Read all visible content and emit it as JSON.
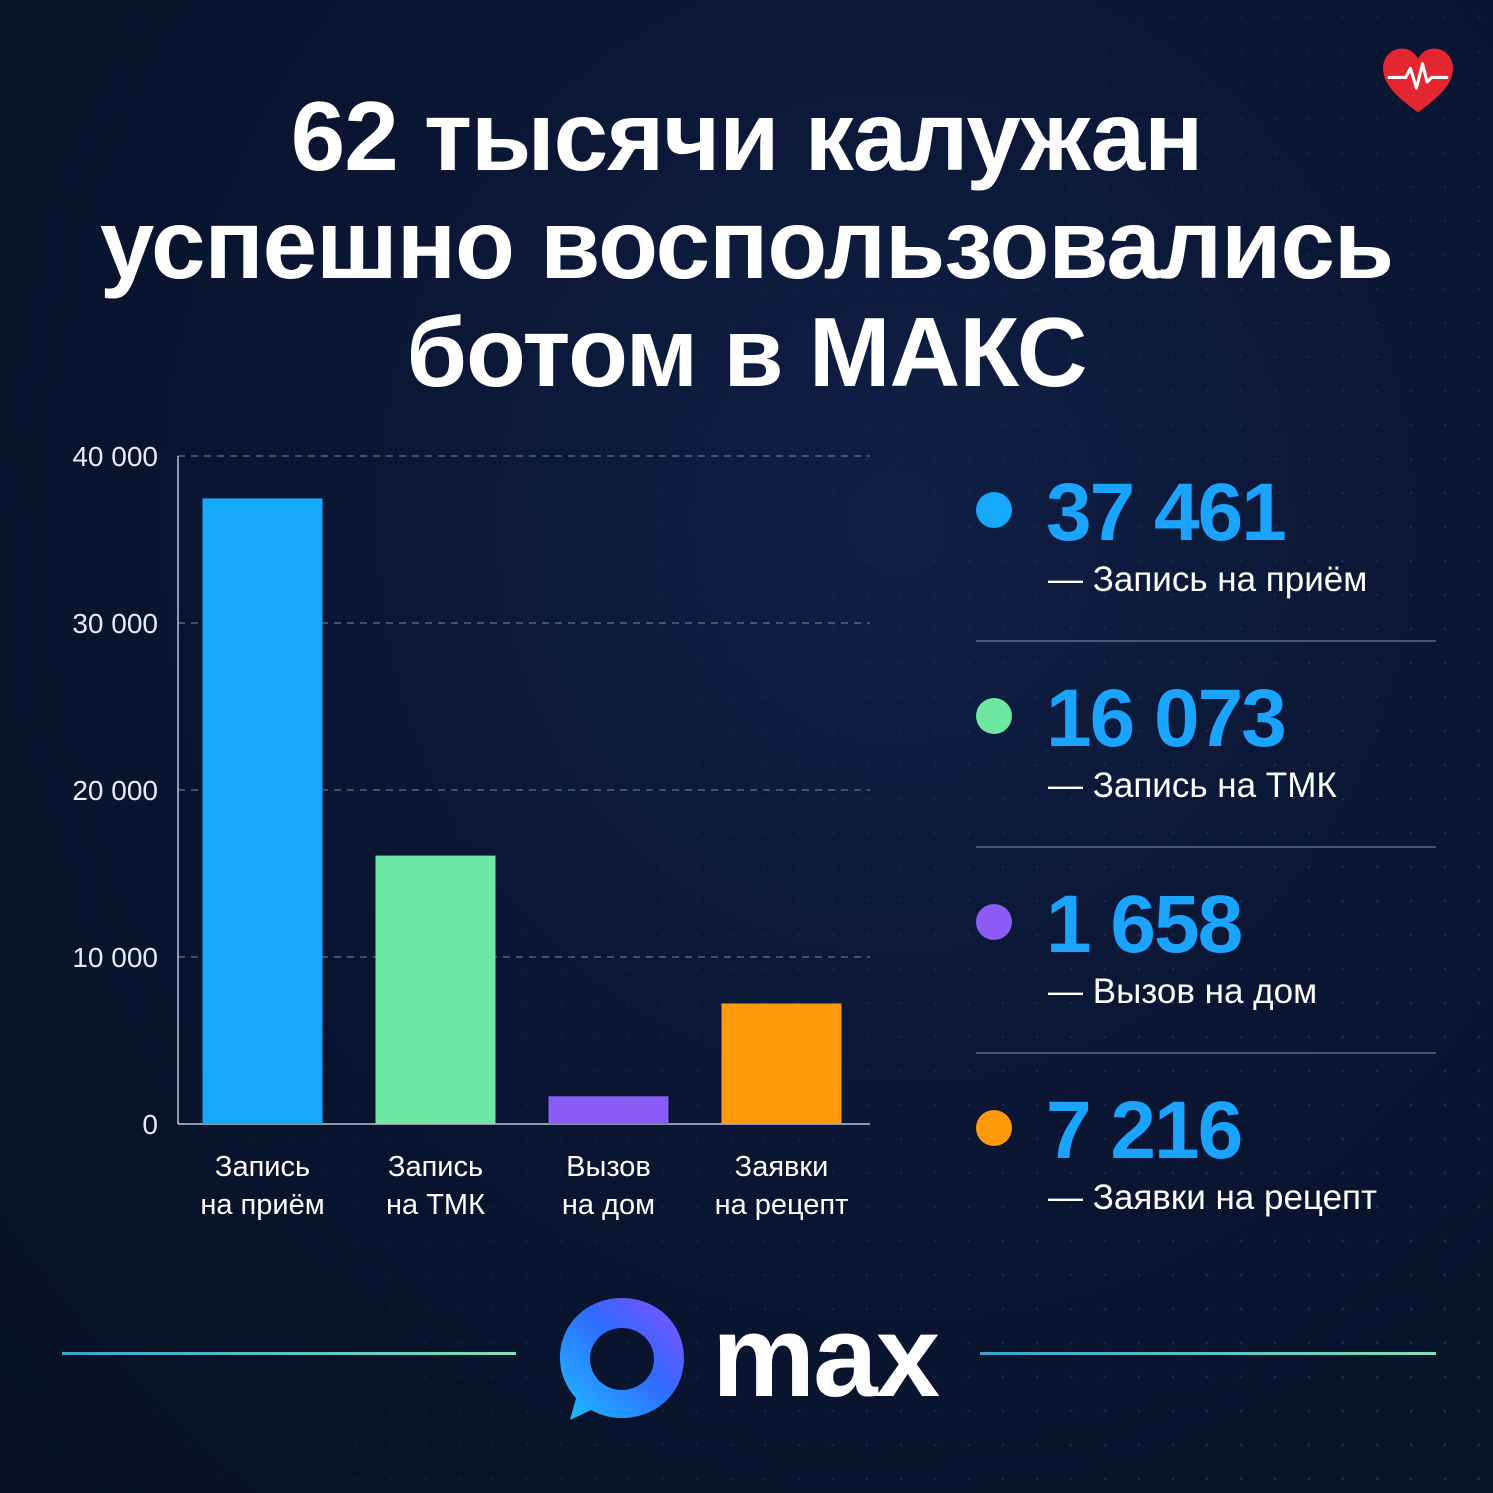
{
  "title": {
    "line1": "62 тысячи калужан",
    "line2": "успешно воспользовались",
    "line3": "ботом в МАКС"
  },
  "chart_data": {
    "type": "bar",
    "categories": [
      "Запись на приём",
      "Запись на ТМК",
      "Вызов на дом",
      "Заявки на рецепт"
    ],
    "category_lines": [
      [
        "Запись",
        "на приём"
      ],
      [
        "Запись",
        "на ТМК"
      ],
      [
        "Вызов",
        "на дом"
      ],
      [
        "Заявки",
        "на рецепт"
      ]
    ],
    "values": [
      37461,
      16073,
      1658,
      7216
    ],
    "colors": [
      "#15a8fb",
      "#6ee7a2",
      "#8b5cf6",
      "#ff9a0d"
    ],
    "ylim": [
      0,
      40000
    ],
    "yticks": [
      0,
      10000,
      20000,
      30000,
      40000
    ],
    "ytick_labels": [
      "0",
      "10 000",
      "20 000",
      "30 000",
      "40 000"
    ],
    "grid": true
  },
  "legend": [
    {
      "value": "37 461",
      "label": "— Запись на приём",
      "color": "#15a8fb"
    },
    {
      "value": "16 073",
      "label": "— Запись на ТМК",
      "color": "#6ee7a2"
    },
    {
      "value": "1 658",
      "label": "— Вызов на дом",
      "color": "#8b5cf6"
    },
    {
      "value": "7 216",
      "label": "— Заявки на рецепт",
      "color": "#ff9a0d"
    }
  ],
  "footer": {
    "logo_text": "max",
    "logo_icon": "max-messenger-icon",
    "badge_icon": "heart-pulse-icon"
  }
}
